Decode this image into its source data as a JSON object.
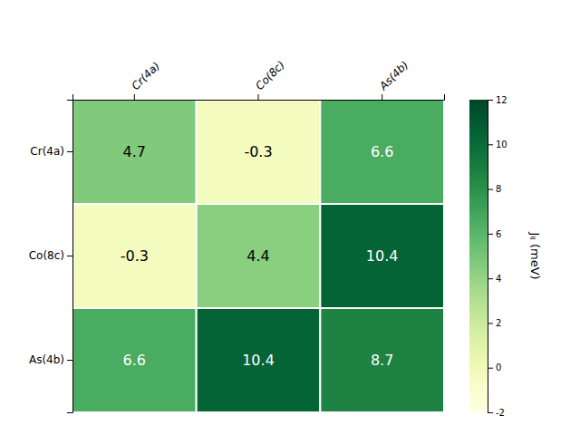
{
  "chart_data": {
    "type": "heatmap",
    "row_labels": [
      "Cr(4a)",
      "Co(8c)",
      "As(4b)"
    ],
    "col_labels": [
      "Cr(4a)",
      "Co(8c)",
      "As(4b)"
    ],
    "cells": [
      [
        4.7,
        -0.3,
        6.6
      ],
      [
        -0.3,
        4.4,
        10.4
      ],
      [
        6.6,
        10.4,
        8.7
      ]
    ],
    "colorbar_label": "Jᵢⱼ (meV)",
    "color_range": [
      -2,
      12
    ],
    "colorbar_ticks": [
      -2,
      0,
      2,
      4,
      6,
      8,
      10,
      12
    ],
    "color": "YlGn",
    "data_labels": true
  }
}
